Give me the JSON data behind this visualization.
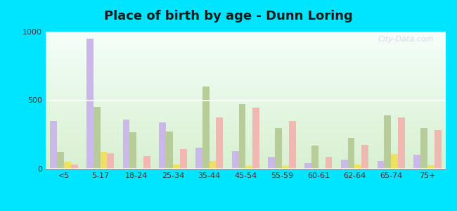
{
  "title": "Place of birth by age - Dunn Loring",
  "categories": [
    "<5",
    "5-17",
    "18-24",
    "25-34",
    "35-44",
    "45-54",
    "55-59",
    "60-61",
    "62-64",
    "65-74",
    "75+"
  ],
  "series": {
    "Born in state of residence": [
      350,
      950,
      360,
      340,
      155,
      130,
      85,
      40,
      65,
      55,
      105
    ],
    "Born in other state": [
      125,
      450,
      265,
      270,
      600,
      470,
      300,
      170,
      225,
      390,
      295
    ],
    "Native, outside of US": [
      50,
      125,
      0,
      30,
      55,
      20,
      20,
      0,
      30,
      110,
      25
    ],
    "Foreign-born": [
      30,
      115,
      90,
      145,
      375,
      445,
      350,
      85,
      175,
      375,
      280
    ]
  },
  "colors": {
    "Born in state of residence": "#c9b8e8",
    "Born in other state": "#b8cc9a",
    "Native, outside of US": "#f0e060",
    "Foreign-born": "#f0b8b0"
  },
  "ylim": [
    0,
    1000
  ],
  "yticks": [
    0,
    500,
    1000
  ],
  "bg_top": "#f5fffa",
  "bg_bottom": "#d8f0d0",
  "outer_background": "#00e5ff",
  "grid_color": "#ffffff",
  "title_fontsize": 13,
  "legend_fontsize": 8,
  "bar_width": 0.19,
  "watermark": "City-Data.com",
  "watermark_color": "#c0c8d8",
  "watermark_alpha": 0.65
}
